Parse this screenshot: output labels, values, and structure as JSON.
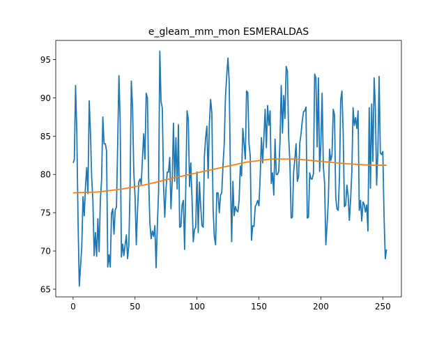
{
  "chart_data": {
    "type": "line",
    "title": "e_gleam_mm_mon ESMERALDAS",
    "xlabel": "",
    "ylabel": "",
    "xlim": [
      -14,
      265
    ],
    "ylim": [
      64,
      97.5
    ],
    "x_ticks": [
      0,
      50,
      100,
      150,
      200,
      250
    ],
    "y_ticks": [
      65,
      70,
      75,
      80,
      85,
      90,
      95
    ],
    "grid": false,
    "legend": "none",
    "series": [
      {
        "color": "#1f77b4",
        "points": [
          [
            0,
            81.5
          ],
          [
            1,
            81.9
          ],
          [
            2,
            91.6
          ],
          [
            3,
            85.5
          ],
          [
            4,
            74.0
          ],
          [
            5,
            65.4
          ],
          [
            6,
            68.0
          ],
          [
            7,
            70.5
          ],
          [
            8,
            77.1
          ],
          [
            9,
            74.6
          ],
          [
            10,
            78.4
          ],
          [
            11,
            80.9
          ],
          [
            12,
            77.5
          ],
          [
            13,
            89.6
          ],
          [
            14,
            85.5
          ],
          [
            15,
            79.6
          ],
          [
            16,
            76.5
          ],
          [
            17,
            69.4
          ],
          [
            18,
            72.4
          ],
          [
            19,
            69.3
          ],
          [
            20,
            74.2
          ],
          [
            21,
            69.9
          ],
          [
            22,
            76.6
          ],
          [
            23,
            79.3
          ],
          [
            24,
            87.5
          ],
          [
            25,
            84.0
          ],
          [
            26,
            84.0
          ],
          [
            27,
            83.1
          ],
          [
            28,
            67.9
          ],
          [
            29,
            69.5
          ],
          [
            30,
            67.9
          ],
          [
            31,
            74.9
          ],
          [
            32,
            75.5
          ],
          [
            33,
            72.2
          ],
          [
            34,
            75.4
          ],
          [
            35,
            75.7
          ],
          [
            36,
            84.0
          ],
          [
            37,
            92.9
          ],
          [
            38,
            87.0
          ],
          [
            39,
            69.2
          ],
          [
            40,
            70.9
          ],
          [
            41,
            69.4
          ],
          [
            42,
            70.8
          ],
          [
            43,
            72.1
          ],
          [
            44,
            69.0
          ],
          [
            45,
            70.8
          ],
          [
            46,
            78.3
          ],
          [
            47,
            92.2
          ],
          [
            48,
            88.7
          ],
          [
            49,
            80.3
          ],
          [
            50,
            77.1
          ],
          [
            51,
            70.8
          ],
          [
            52,
            75.3
          ],
          [
            53,
            79.0
          ],
          [
            54,
            79.4
          ],
          [
            55,
            78.7
          ],
          [
            56,
            82.1
          ],
          [
            57,
            85.3
          ],
          [
            58,
            82.0
          ],
          [
            59,
            90.6
          ],
          [
            60,
            90.0
          ],
          [
            61,
            79.3
          ],
          [
            62,
            73.6
          ],
          [
            63,
            71.6
          ],
          [
            64,
            72.6
          ],
          [
            65,
            71.9
          ],
          [
            66,
            73.3
          ],
          [
            67,
            67.8
          ],
          [
            68,
            73.3
          ],
          [
            69,
            77.7
          ],
          [
            70,
            96.1
          ],
          [
            71,
            89.5
          ],
          [
            72,
            88.7
          ],
          [
            73,
            78.7
          ],
          [
            74,
            74.4
          ],
          [
            75,
            78.1
          ],
          [
            76,
            80.3
          ],
          [
            77,
            80.3
          ],
          [
            78,
            82.2
          ],
          [
            79,
            75.5
          ],
          [
            80,
            79.1
          ],
          [
            81,
            86.7
          ],
          [
            82,
            79.1
          ],
          [
            83,
            84.8
          ],
          [
            84,
            78.1
          ],
          [
            85,
            86.5
          ],
          [
            86,
            73.1
          ],
          [
            87,
            73.2
          ],
          [
            88,
            76.0
          ],
          [
            89,
            76.6
          ],
          [
            90,
            70.2
          ],
          [
            91,
            78.8
          ],
          [
            92,
            88.3
          ],
          [
            93,
            87.2
          ],
          [
            94,
            78.4
          ],
          [
            95,
            81.5
          ],
          [
            96,
            76.8
          ],
          [
            97,
            71.2
          ],
          [
            98,
            72.8
          ],
          [
            99,
            73.1
          ],
          [
            100,
            80.3
          ],
          [
            101,
            72.4
          ],
          [
            102,
            79.0
          ],
          [
            103,
            75.8
          ],
          [
            104,
            73.3
          ],
          [
            105,
            73.1
          ],
          [
            106,
            82.4
          ],
          [
            107,
            84.8
          ],
          [
            108,
            86.3
          ],
          [
            109,
            79.5
          ],
          [
            110,
            86.6
          ],
          [
            111,
            89.8
          ],
          [
            112,
            88.0
          ],
          [
            113,
            75.5
          ],
          [
            114,
            71.9
          ],
          [
            115,
            70.8
          ],
          [
            116,
            77.6
          ],
          [
            117,
            77.6
          ],
          [
            118,
            75.0
          ],
          [
            119,
            77.3
          ],
          [
            120,
            77.6
          ],
          [
            121,
            81.2
          ],
          [
            122,
            84.0
          ],
          [
            123,
            90.2
          ],
          [
            124,
            92.9
          ],
          [
            125,
            95.2
          ],
          [
            126,
            92.1
          ],
          [
            127,
            79.8
          ],
          [
            128,
            71.2
          ],
          [
            129,
            79.1
          ],
          [
            130,
            74.6
          ],
          [
            131,
            75.8
          ],
          [
            132,
            75.3
          ],
          [
            133,
            75.1
          ],
          [
            134,
            76.6
          ],
          [
            135,
            81.1
          ],
          [
            136,
            79.8
          ],
          [
            137,
            86.0
          ],
          [
            138,
            84.0
          ],
          [
            139,
            82.0
          ],
          [
            140,
            90.9
          ],
          [
            141,
            90.7
          ],
          [
            142,
            84.0
          ],
          [
            143,
            82.4
          ],
          [
            144,
            71.4
          ],
          [
            145,
            73.3
          ],
          [
            146,
            73.2
          ],
          [
            147,
            75.8
          ],
          [
            148,
            76.1
          ],
          [
            149,
            76.6
          ],
          [
            150,
            75.9
          ],
          [
            151,
            79.7
          ],
          [
            152,
            84.8
          ],
          [
            153,
            81.5
          ],
          [
            154,
            84.8
          ],
          [
            155,
            88.5
          ],
          [
            156,
            83.5
          ],
          [
            157,
            89.0
          ],
          [
            158,
            86.4
          ],
          [
            159,
            88.3
          ],
          [
            160,
            78.8
          ],
          [
            161,
            80.2
          ],
          [
            162,
            77.3
          ],
          [
            163,
            84.6
          ],
          [
            164,
            80.0
          ],
          [
            165,
            80.0
          ],
          [
            166,
            80.4
          ],
          [
            167,
            84.3
          ],
          [
            168,
            91.6
          ],
          [
            169,
            85.4
          ],
          [
            170,
            90.3
          ],
          [
            171,
            87.3
          ],
          [
            172,
            94.1
          ],
          [
            173,
            93.5
          ],
          [
            174,
            84.9
          ],
          [
            175,
            81.6
          ],
          [
            176,
            74.3
          ],
          [
            177,
            74.4
          ],
          [
            178,
            80.3
          ],
          [
            179,
            82.0
          ],
          [
            180,
            84.0
          ],
          [
            181,
            79.1
          ],
          [
            182,
            79.7
          ],
          [
            183,
            84.1
          ],
          [
            184,
            85.3
          ],
          [
            185,
            87.0
          ],
          [
            186,
            88.2
          ],
          [
            187,
            88.3
          ],
          [
            188,
            88.8
          ],
          [
            189,
            74.3
          ],
          [
            190,
            74.4
          ],
          [
            191,
            80.2
          ],
          [
            192,
            79.4
          ],
          [
            193,
            79.4
          ],
          [
            194,
            80.1
          ],
          [
            195,
            93.1
          ],
          [
            196,
            92.6
          ],
          [
            197,
            83.6
          ],
          [
            198,
            92.6
          ],
          [
            199,
            80.4
          ],
          [
            200,
            84.0
          ],
          [
            201,
            90.6
          ],
          [
            202,
            81.0
          ],
          [
            203,
            78.9
          ],
          [
            204,
            70.8
          ],
          [
            205,
            73.4
          ],
          [
            206,
            76.5
          ],
          [
            207,
            83.3
          ],
          [
            208,
            81.8
          ],
          [
            209,
            82.6
          ],
          [
            210,
            88.5
          ],
          [
            211,
            87.8
          ],
          [
            212,
            77.0
          ],
          [
            213,
            75.5
          ],
          [
            214,
            75.3
          ],
          [
            215,
            79.6
          ],
          [
            216,
            89.7
          ],
          [
            217,
            90.9
          ],
          [
            218,
            85.5
          ],
          [
            219,
            75.8
          ],
          [
            220,
            76.0
          ],
          [
            221,
            78.6
          ],
          [
            222,
            77.2
          ],
          [
            223,
            74.0
          ],
          [
            224,
            76.7
          ],
          [
            225,
            80.4
          ],
          [
            226,
            88.7
          ],
          [
            227,
            86.4
          ],
          [
            228,
            87.4
          ],
          [
            229,
            86.0
          ],
          [
            230,
            88.3
          ],
          [
            231,
            75.3
          ],
          [
            232,
            76.6
          ],
          [
            233,
            73.9
          ],
          [
            234,
            76.4
          ],
          [
            235,
            76.1
          ],
          [
            236,
            75.1
          ],
          [
            237,
            76.0
          ],
          [
            238,
            72.6
          ],
          [
            239,
            88.7
          ],
          [
            240,
            78.2
          ],
          [
            241,
            89.2
          ],
          [
            242,
            81.7
          ],
          [
            243,
            92.6
          ],
          [
            244,
            88.7
          ],
          [
            245,
            78.6
          ],
          [
            246,
            83.0
          ],
          [
            247,
            92.8
          ],
          [
            248,
            82.8
          ],
          [
            249,
            82.6
          ],
          [
            250,
            83.0
          ],
          [
            251,
            74.5
          ],
          [
            252,
            69.0
          ],
          [
            253,
            70.2
          ]
        ]
      },
      {
        "color": "#ff7f0e",
        "points": [
          [
            0,
            77.6
          ],
          [
            20,
            77.7
          ],
          [
            40,
            78.1
          ],
          [
            60,
            78.7
          ],
          [
            80,
            79.5
          ],
          [
            100,
            80.2
          ],
          [
            120,
            80.9
          ],
          [
            140,
            81.6
          ],
          [
            160,
            82.0
          ],
          [
            180,
            82.0
          ],
          [
            200,
            81.7
          ],
          [
            220,
            81.4
          ],
          [
            240,
            81.2
          ],
          [
            253,
            81.2
          ]
        ]
      }
    ]
  }
}
